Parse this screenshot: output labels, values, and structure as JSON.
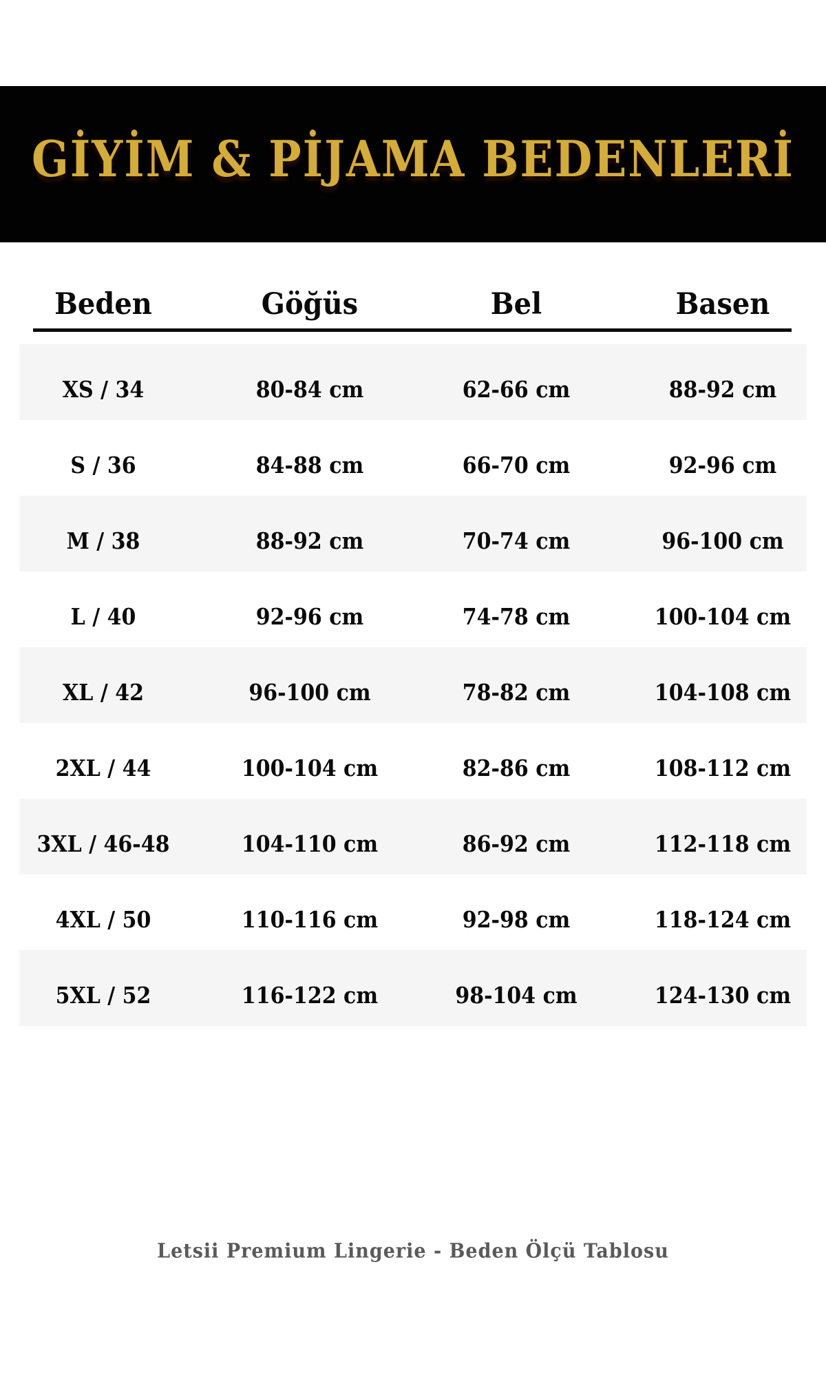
{
  "chart_data": {
    "type": "table",
    "title": "GİYİM & PİJAMA BEDENLERİ",
    "columns": [
      "Beden",
      "Göğüs",
      "Bel",
      "Basen"
    ],
    "rows": [
      [
        "XS / 34",
        "80-84 cm",
        "62-66 cm",
        "88-92 cm"
      ],
      [
        "S / 36",
        "84-88 cm",
        "66-70 cm",
        "92-96 cm"
      ],
      [
        "M / 38",
        "88-92 cm",
        "70-74 cm",
        "96-100 cm"
      ],
      [
        "L / 40",
        "92-96 cm",
        "74-78 cm",
        "100-104 cm"
      ],
      [
        "XL / 42",
        "96-100 cm",
        "78-82 cm",
        "104-108 cm"
      ],
      [
        "2XL / 44",
        "100-104 cm",
        "82-86 cm",
        "108-112 cm"
      ],
      [
        "3XL / 46-48",
        "104-110 cm",
        "86-92 cm",
        "112-118 cm"
      ],
      [
        "4XL / 50",
        "110-116 cm",
        "92-98 cm",
        "118-124 cm"
      ],
      [
        "5XL / 52",
        "116-122 cm",
        "98-104 cm",
        "124-130 cm"
      ]
    ],
    "footer": "Letsii Premium Lingerie - Beden Ölçü Tablosu",
    "layout": {
      "striped_rows": "odd",
      "header_rule": true,
      "units": "cm"
    }
  },
  "colors": {
    "banner-bg": "#020202",
    "title-gold": "#D4AC3C",
    "row-alt": "#F5F5F5",
    "table-text": "#0A0A0A",
    "footer-text": "#5A5A5A"
  }
}
